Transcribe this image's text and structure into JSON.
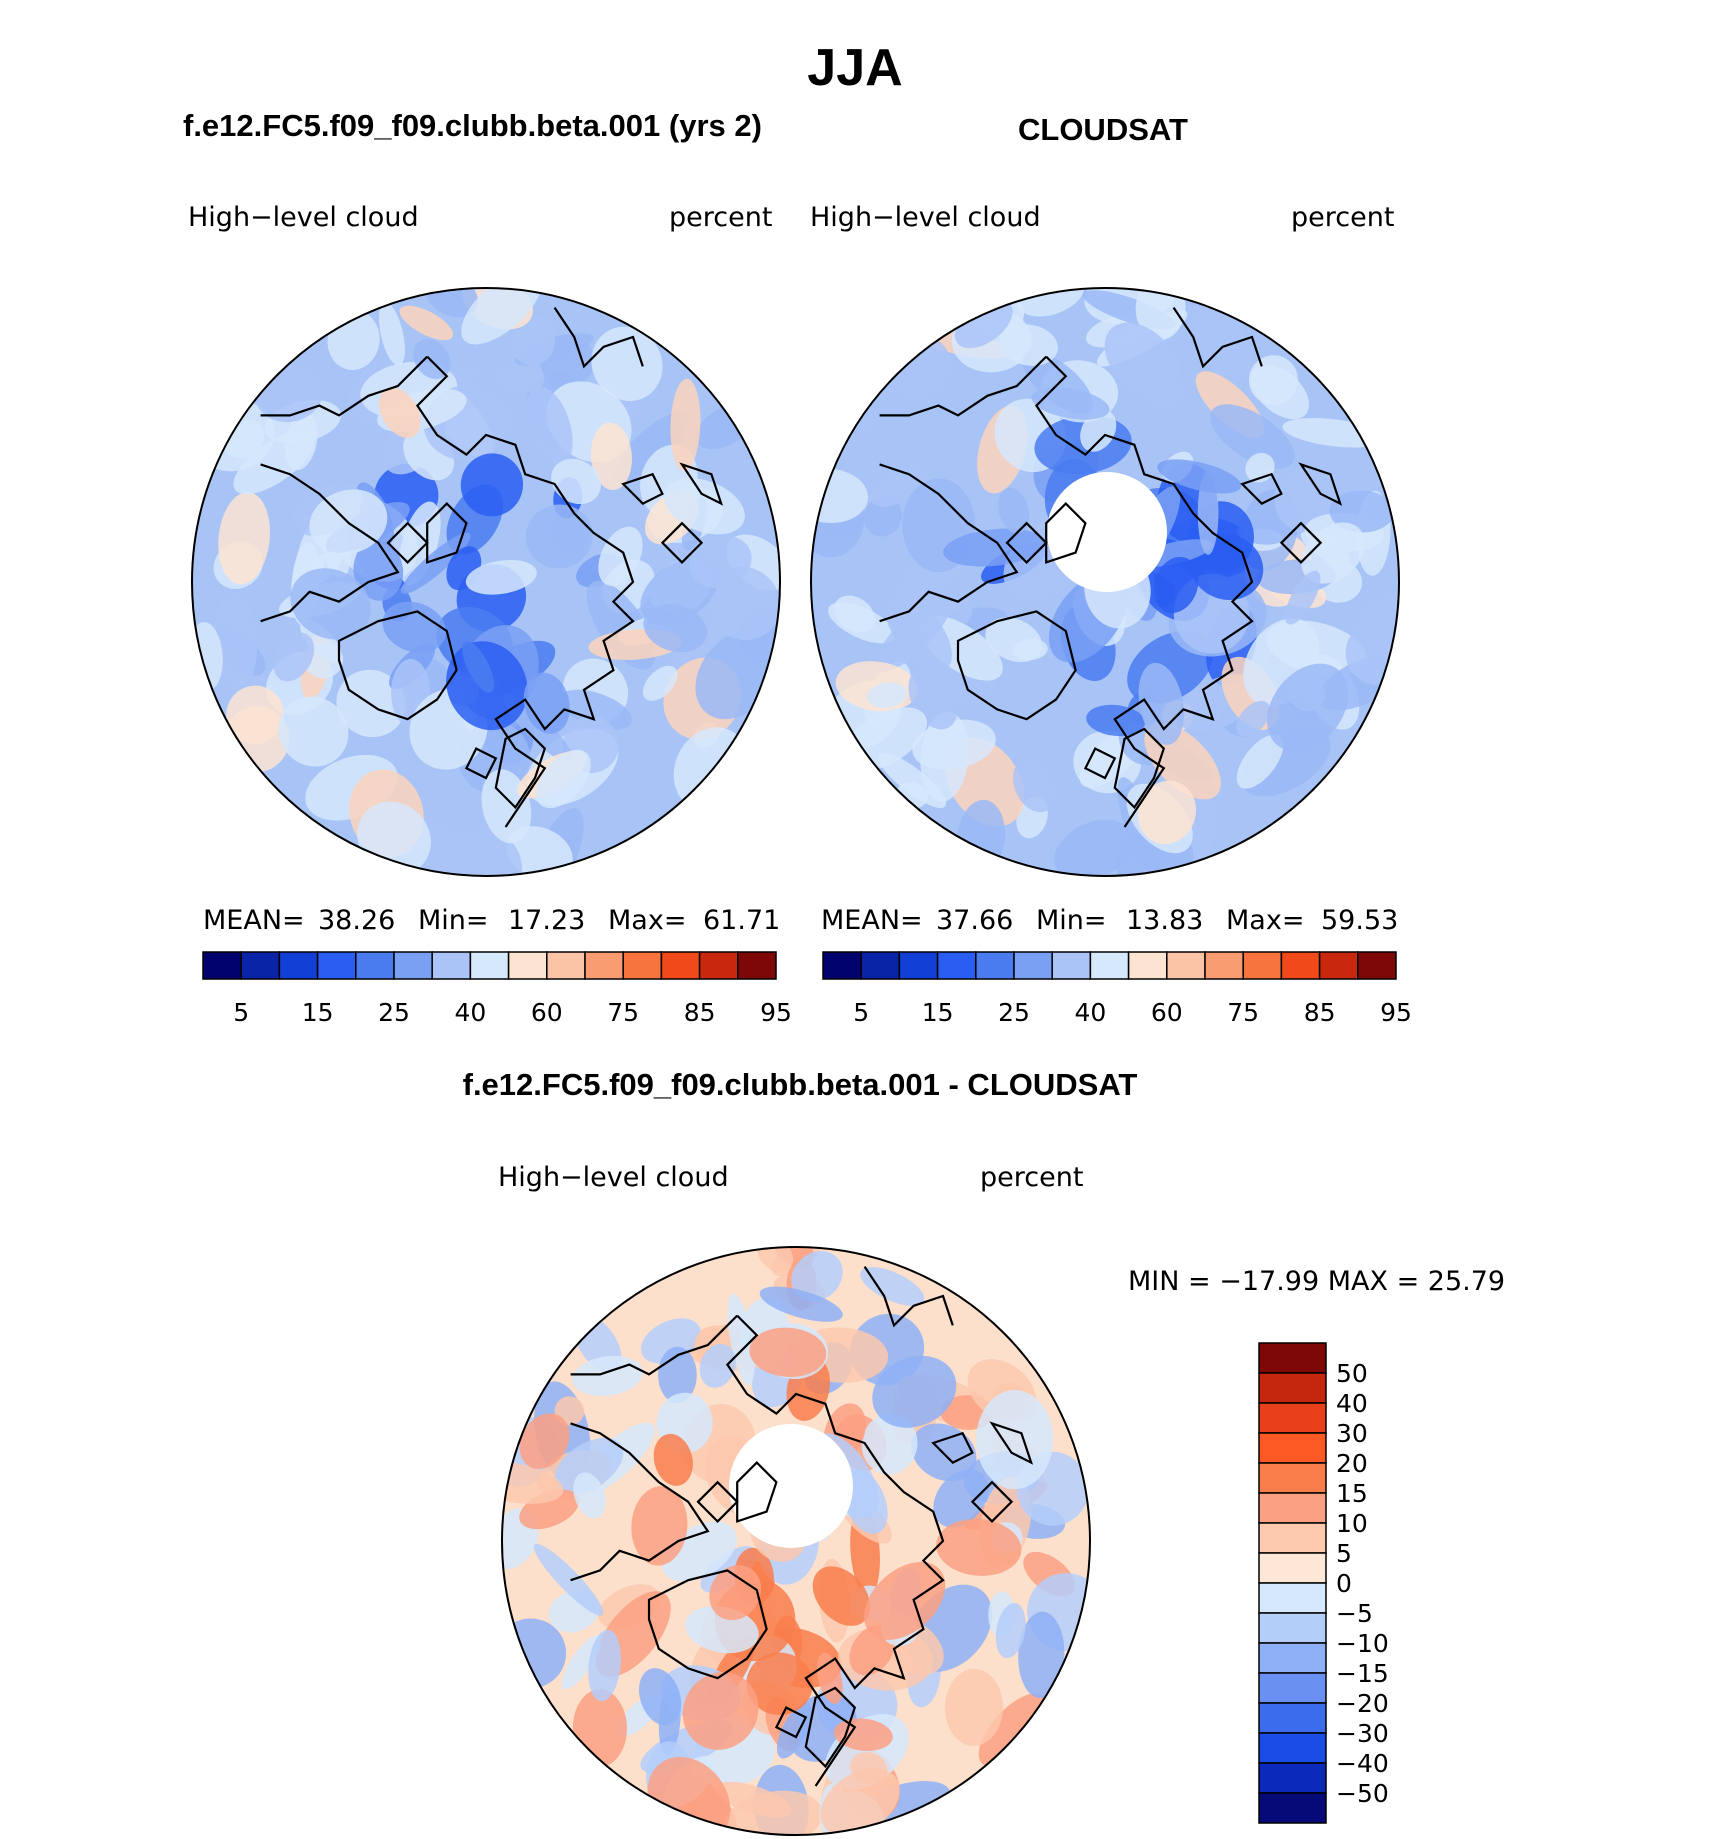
{
  "main_title": "JJA",
  "panels": {
    "model": {
      "title": "f.e12.FC5.f09_f09.clubb.beta.001 (yrs 2)",
      "field_label": "High−level cloud",
      "units_label": "percent",
      "stats": {
        "mean_label": "MEAN=",
        "mean": "38.26",
        "min_label": "Min=",
        "min": "17.23",
        "max_label": "Max=",
        "max": "61.71"
      }
    },
    "obs": {
      "title": "CLOUDSAT",
      "field_label": "High−level cloud",
      "units_label": "percent",
      "stats": {
        "mean_label": "MEAN=",
        "mean": "37.66",
        "min_label": "Min=",
        "min": "13.83",
        "max_label": "Max=",
        "max": "59.53"
      }
    },
    "diff": {
      "title": "f.e12.FC5.f09_f09.clubb.beta.001 - CLOUDSAT",
      "field_label": "High−level cloud",
      "units_label": "percent",
      "stats_text": "MIN = −17.99 MAX =   25.79"
    }
  },
  "chart_data": [
    {
      "type": "heatmap",
      "projection": "north polar stereographic",
      "title": "f.e12.FC5.f09_f09.clubb.beta.001 (yrs 2)",
      "field": "High−level cloud",
      "units": "percent",
      "mean": 38.26,
      "min": 17.23,
      "max": 61.71,
      "colorbar_levels": [
        5,
        10,
        15,
        20,
        25,
        30,
        40,
        50,
        60,
        70,
        75,
        80,
        85,
        90,
        95
      ],
      "colorbar_tick_labels": [
        "5",
        "15",
        "25",
        "40",
        "60",
        "75",
        "85",
        "95"
      ],
      "colors": [
        "#02026e",
        "#0a24a8",
        "#1240d6",
        "#2a5ef2",
        "#4a7cf0",
        "#7aa0f4",
        "#aac4f8",
        "#d6e8fc",
        "#fde4d2",
        "#fcc4a6",
        "#fa9c72",
        "#f8743e",
        "#f04a1a",
        "#c8280e",
        "#7e0808"
      ]
    },
    {
      "type": "heatmap",
      "projection": "north polar stereographic",
      "title": "CLOUDSAT",
      "field": "High−level cloud",
      "units": "percent",
      "mean": 37.66,
      "min": 13.83,
      "max": 59.53,
      "colorbar_levels": [
        5,
        10,
        15,
        20,
        25,
        30,
        40,
        50,
        60,
        70,
        75,
        80,
        85,
        90,
        95
      ],
      "colorbar_tick_labels": [
        "5",
        "15",
        "25",
        "40",
        "60",
        "75",
        "85",
        "95"
      ],
      "colors": [
        "#02026e",
        "#0a24a8",
        "#1240d6",
        "#2a5ef2",
        "#4a7cf0",
        "#7aa0f4",
        "#aac4f8",
        "#d6e8fc",
        "#fde4d2",
        "#fcc4a6",
        "#fa9c72",
        "#f8743e",
        "#f04a1a",
        "#c8280e",
        "#7e0808"
      ]
    },
    {
      "type": "heatmap",
      "projection": "north polar stereographic",
      "title": "f.e12.FC5.f09_f09.clubb.beta.001 - CLOUDSAT",
      "field": "High−level cloud",
      "units": "percent",
      "min": -17.99,
      "max": 25.79,
      "colorbar_tick_labels": [
        "50",
        "40",
        "30",
        "20",
        "15",
        "10",
        "5",
        "0",
        "−5",
        "−10",
        "−15",
        "−20",
        "−30",
        "−40",
        "−50"
      ],
      "colors_top_to_bottom": [
        "#7e0808",
        "#c4260e",
        "#e8401a",
        "#fc5a24",
        "#f97e4c",
        "#fba082",
        "#fcc8ae",
        "#fde8d8",
        "#d6e8fc",
        "#b4cefa",
        "#8eb0f6",
        "#6a90f2",
        "#3c6cee",
        "#1a4ce6",
        "#0c2aba",
        "#050a78"
      ]
    }
  ]
}
